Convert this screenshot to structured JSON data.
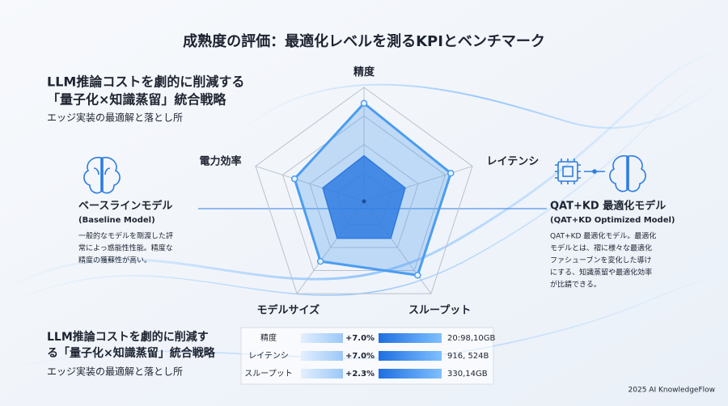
{
  "title": "成熟度の評価：最適化レベルを測るKPIとベンチマーク",
  "header": {
    "lines": [
      "LLM推論コストを劇的に削減する",
      "「量子化×知識蒸留」統合戦略"
    ],
    "subtitle": "エッジ実装の最適解と落とし所"
  },
  "baseline_panel": {
    "name": "ベースラインモデル",
    "name_en": "(Baseline Model)",
    "description": [
      "一般的なモデルを剛渡した評",
      "常によっ惑能性性能。精度な",
      "精度の獲蘇性が高い。"
    ]
  },
  "optimized_panel": {
    "name": "QAT+KD 最適化モデル",
    "name_en": "(QAT+KD Optimized Model)",
    "description": [
      "QAT+KD 最適化モデル。最適化",
      "モデルとは、褶に様々な最適化",
      "ファシューブンを変化した導け",
      "にする、知識蒸留や最適化効率",
      "が比錆できる。"
    ]
  },
  "chart_data": {
    "type": "radar",
    "categories": [
      "精度",
      "レイテンシ",
      "スループット",
      "モデルサイズ",
      "電力効率"
    ],
    "rlim": [
      0,
      1
    ],
    "series": [
      {
        "name": "ベースラインモデル",
        "color": "#2f7be0",
        "values": [
          0.4,
          0.38,
          0.4,
          0.4,
          0.38
        ]
      },
      {
        "name": "QAT+KD 最適化モデル",
        "color": "#4b9cf0",
        "values": [
          0.86,
          0.8,
          0.8,
          0.65,
          0.64
        ]
      }
    ]
  },
  "footer_block": {
    "lines": [
      "LLM推論コストを劇的に削減す",
      "る「量子化×知識蒸留」統合戦略"
    ],
    "subtitle": "エッジ実装の最適解と落とし所"
  },
  "table": {
    "rows": [
      [
        "精度",
        "+7.0%",
        "20:98,10GB"
      ],
      [
        "レイテンシ",
        "+7.0%",
        "916, 524B"
      ],
      [
        "スループット",
        "+2.3%",
        "330,14GB"
      ]
    ]
  },
  "credit": "2025 AI KnowledgeFlow"
}
